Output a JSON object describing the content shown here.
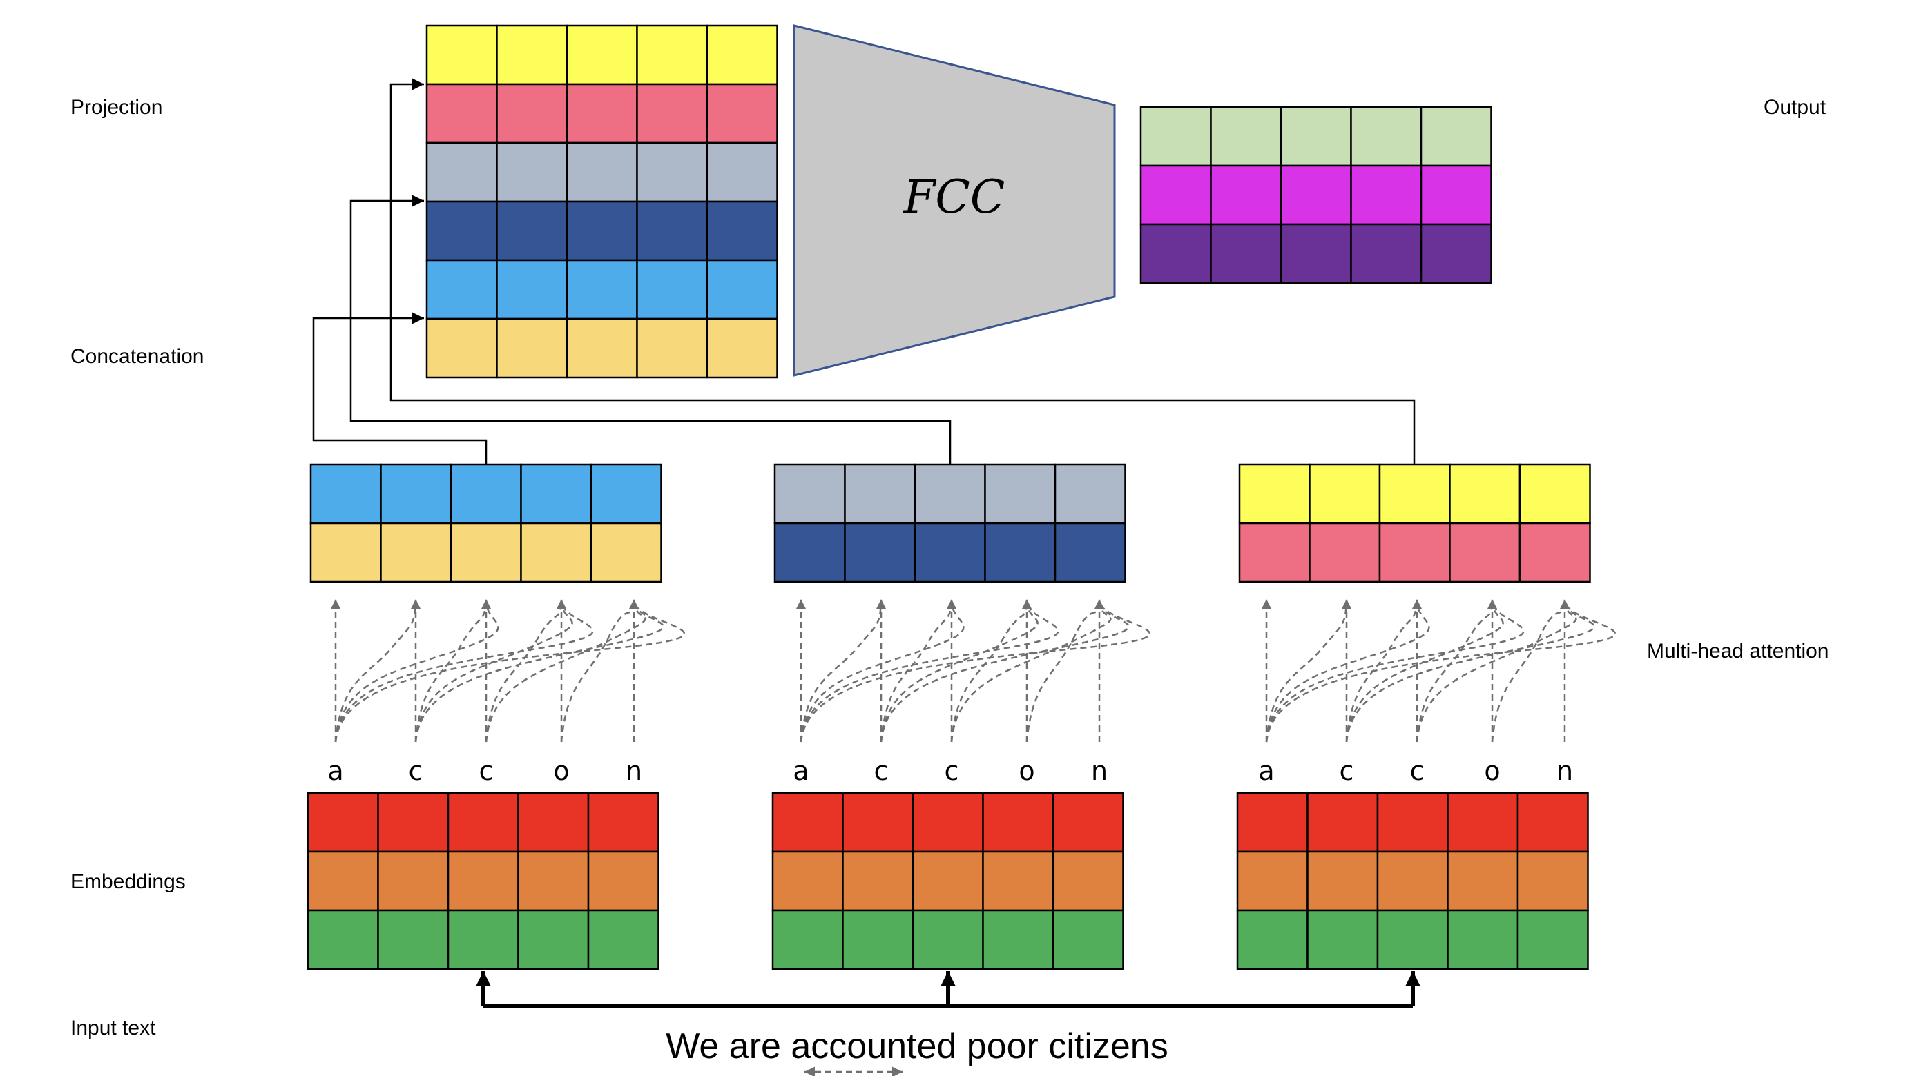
{
  "labels": {
    "projection": "Projection",
    "concatenation": "Concatenation",
    "embeddings": "Embeddings",
    "input_text": "Input text",
    "output": "Output",
    "multi_head_attention": "Multi-head attention"
  },
  "fcc_label": "FCC",
  "input_sentence": "We are accounted poor citizens",
  "tokens": [
    "a",
    "c",
    "c",
    "o",
    "n"
  ],
  "colors": {
    "yellow": "#fefe5a",
    "pink": "#ee6e84",
    "gray_blue": "#adb8c8",
    "dark_blue": "#365595",
    "light_blue": "#4eaceb",
    "tan": "#f7d87a",
    "light_green": "#c8dfb5",
    "magenta": "#d833e6",
    "purple": "#6a3197",
    "red": "#e83426",
    "orange": "#df8240",
    "green": "#52ae5b",
    "fcc_fill": "#c8c8c8",
    "fcc_border": "#3a5590"
  },
  "blocks": {
    "projection": [
      "yellow",
      "pink",
      "gray_blue",
      "dark_blue",
      "light_blue",
      "tan"
    ],
    "output": [
      "light_green",
      "magenta",
      "purple"
    ],
    "heads": [
      [
        "light_blue",
        "tan"
      ],
      [
        "gray_blue",
        "dark_blue"
      ],
      [
        "yellow",
        "pink"
      ]
    ],
    "embeddings": [
      "red",
      "orange",
      "green"
    ]
  }
}
